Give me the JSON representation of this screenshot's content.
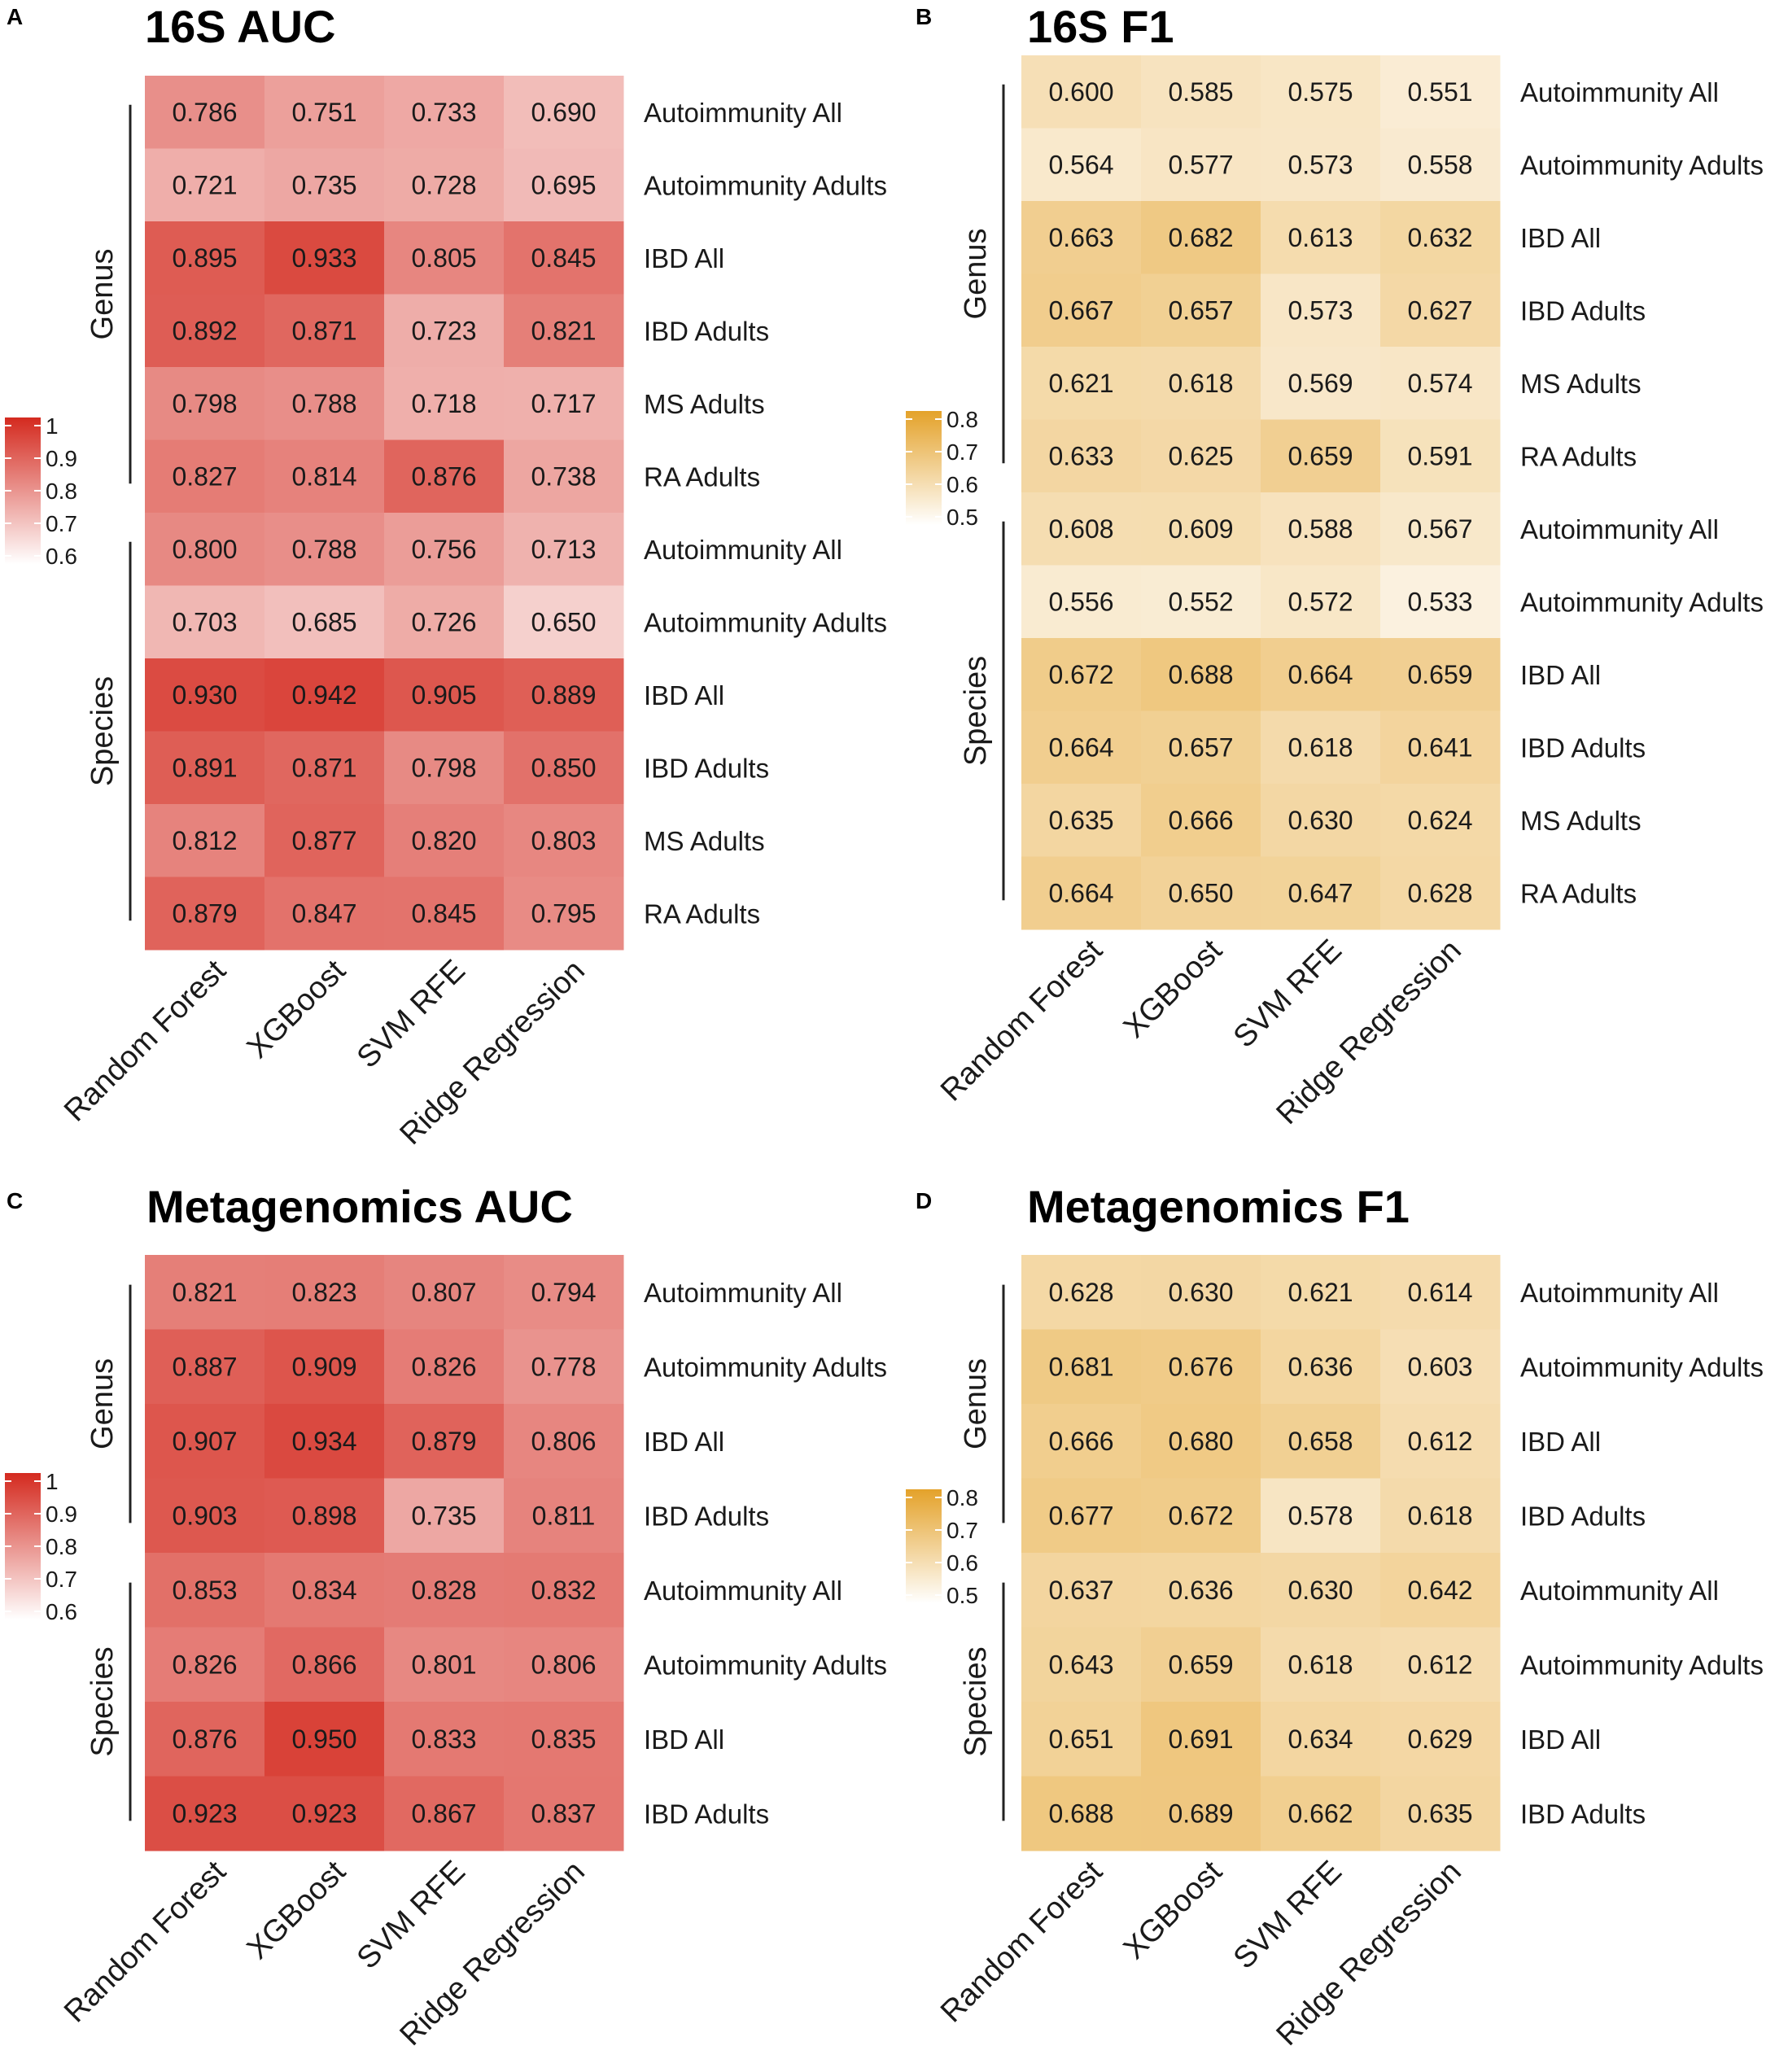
{
  "chart_data": [
    {
      "type": "heatmap",
      "panel": "A",
      "title": "16S AUC",
      "columns": [
        "Random Forest",
        "XGBoost",
        "SVM RFE",
        "Ridge Regression"
      ],
      "groups": [
        {
          "name": "Genus",
          "rows": [
            "Autoimmunity All",
            "Autoimmunity Adults",
            "IBD All",
            "IBD Adults",
            "MS Adults",
            "RA Adults"
          ]
        },
        {
          "name": "Species",
          "rows": [
            "Autoimmunity All",
            "Autoimmunity Adults",
            "IBD All",
            "IBD Adults",
            "MS Adults",
            "RA Adults"
          ]
        }
      ],
      "values": [
        [
          "0.786",
          "0.751",
          "0.733",
          "0.690"
        ],
        [
          "0.721",
          "0.735",
          "0.728",
          "0.695"
        ],
        [
          "0.895",
          "0.933",
          "0.805",
          "0.845"
        ],
        [
          "0.892",
          "0.871",
          "0.723",
          "0.821"
        ],
        [
          "0.798",
          "0.788",
          "0.718",
          "0.717"
        ],
        [
          "0.827",
          "0.814",
          "0.876",
          "0.738"
        ],
        [
          "0.800",
          "0.788",
          "0.756",
          "0.713"
        ],
        [
          "0.703",
          "0.685",
          "0.726",
          "0.650"
        ],
        [
          "0.930",
          "0.942",
          "0.905",
          "0.889"
        ],
        [
          "0.891",
          "0.871",
          "0.798",
          "0.850"
        ],
        [
          "0.812",
          "0.877",
          "0.820",
          "0.803"
        ],
        [
          "0.879",
          "0.847",
          "0.845",
          "0.795"
        ]
      ],
      "color_low": "#ffffff",
      "color_high": "#d42a1f",
      "scale_range": [
        0.55,
        1.0
      ],
      "legend_ticks": [
        "1",
        "0.9",
        "0.8",
        "0.7",
        "0.6"
      ]
    },
    {
      "type": "heatmap",
      "panel": "B",
      "title": "16S F1",
      "columns": [
        "Random Forest",
        "XGBoost",
        "SVM RFE",
        "Ridge Regression"
      ],
      "groups": [
        {
          "name": "Genus",
          "rows": [
            "Autoimmunity All",
            "Autoimmunity Adults",
            "IBD All",
            "IBD Adults",
            "MS Adults",
            "RA Adults"
          ]
        },
        {
          "name": "Species",
          "rows": [
            "Autoimmunity All",
            "Autoimmunity Adults",
            "IBD All",
            "IBD Adults",
            "MS Adults",
            "RA Adults"
          ]
        }
      ],
      "values": [
        [
          "0.600",
          "0.585",
          "0.575",
          "0.551"
        ],
        [
          "0.564",
          "0.577",
          "0.573",
          "0.558"
        ],
        [
          "0.663",
          "0.682",
          "0.613",
          "0.632"
        ],
        [
          "0.667",
          "0.657",
          "0.573",
          "0.627"
        ],
        [
          "0.621",
          "0.618",
          "0.569",
          "0.574"
        ],
        [
          "0.633",
          "0.625",
          "0.659",
          "0.591"
        ],
        [
          "0.608",
          "0.609",
          "0.588",
          "0.567"
        ],
        [
          "0.556",
          "0.552",
          "0.572",
          "0.533"
        ],
        [
          "0.672",
          "0.688",
          "0.664",
          "0.659"
        ],
        [
          "0.664",
          "0.657",
          "0.618",
          "0.641"
        ],
        [
          "0.635",
          "0.666",
          "0.630",
          "0.624"
        ],
        [
          "0.664",
          "0.650",
          "0.647",
          "0.628"
        ]
      ],
      "color_low": "#ffffff",
      "color_high": "#e4a22a",
      "scale_range": [
        0.48,
        0.83
      ],
      "legend_ticks": [
        "0.8",
        "0.7",
        "0.6",
        "0.5"
      ]
    },
    {
      "type": "heatmap",
      "panel": "C",
      "title": "Metagenomics AUC",
      "columns": [
        "Random Forest",
        "XGBoost",
        "SVM RFE",
        "Ridge Regression"
      ],
      "groups": [
        {
          "name": "Genus",
          "rows": [
            "Autoimmunity All",
            "Autoimmunity Adults",
            "IBD All",
            "IBD Adults"
          ]
        },
        {
          "name": "Species",
          "rows": [
            "Autoimmunity All",
            "Autoimmunity Adults",
            "IBD All",
            "IBD Adults"
          ]
        }
      ],
      "values": [
        [
          "0.821",
          "0.823",
          "0.807",
          "0.794"
        ],
        [
          "0.887",
          "0.909",
          "0.826",
          "0.778"
        ],
        [
          "0.907",
          "0.934",
          "0.879",
          "0.806"
        ],
        [
          "0.903",
          "0.898",
          "0.735",
          "0.811"
        ],
        [
          "0.853",
          "0.834",
          "0.828",
          "0.832"
        ],
        [
          "0.826",
          "0.866",
          "0.801",
          "0.806"
        ],
        [
          "0.876",
          "0.950",
          "0.833",
          "0.835"
        ],
        [
          "0.923",
          "0.923",
          "0.867",
          "0.837"
        ]
      ],
      "color_low": "#ffffff",
      "color_high": "#d42a1f",
      "scale_range": [
        0.55,
        1.0
      ],
      "legend_ticks": [
        "1",
        "0.9",
        "0.8",
        "0.7",
        "0.6"
      ]
    },
    {
      "type": "heatmap",
      "panel": "D",
      "title": "Metagenomics F1",
      "columns": [
        "Random Forest",
        "XGBoost",
        "SVM RFE",
        "Ridge Regression"
      ],
      "groups": [
        {
          "name": "Genus",
          "rows": [
            "Autoimmunity All",
            "Autoimmunity Adults",
            "IBD All",
            "IBD Adults"
          ]
        },
        {
          "name": "Species",
          "rows": [
            "Autoimmunity All",
            "Autoimmunity Adults",
            "IBD All",
            "IBD Adults"
          ]
        }
      ],
      "values": [
        [
          "0.628",
          "0.630",
          "0.621",
          "0.614"
        ],
        [
          "0.681",
          "0.676",
          "0.636",
          "0.603"
        ],
        [
          "0.666",
          "0.680",
          "0.658",
          "0.612"
        ],
        [
          "0.677",
          "0.672",
          "0.578",
          "0.618"
        ],
        [
          "0.637",
          "0.636",
          "0.630",
          "0.642"
        ],
        [
          "0.643",
          "0.659",
          "0.618",
          "0.612"
        ],
        [
          "0.651",
          "0.691",
          "0.634",
          "0.629"
        ],
        [
          "0.688",
          "0.689",
          "0.662",
          "0.635"
        ]
      ],
      "color_low": "#ffffff",
      "color_high": "#e4a22a",
      "scale_range": [
        0.48,
        0.83
      ],
      "legend_ticks": [
        "0.8",
        "0.7",
        "0.6",
        "0.5"
      ]
    }
  ]
}
